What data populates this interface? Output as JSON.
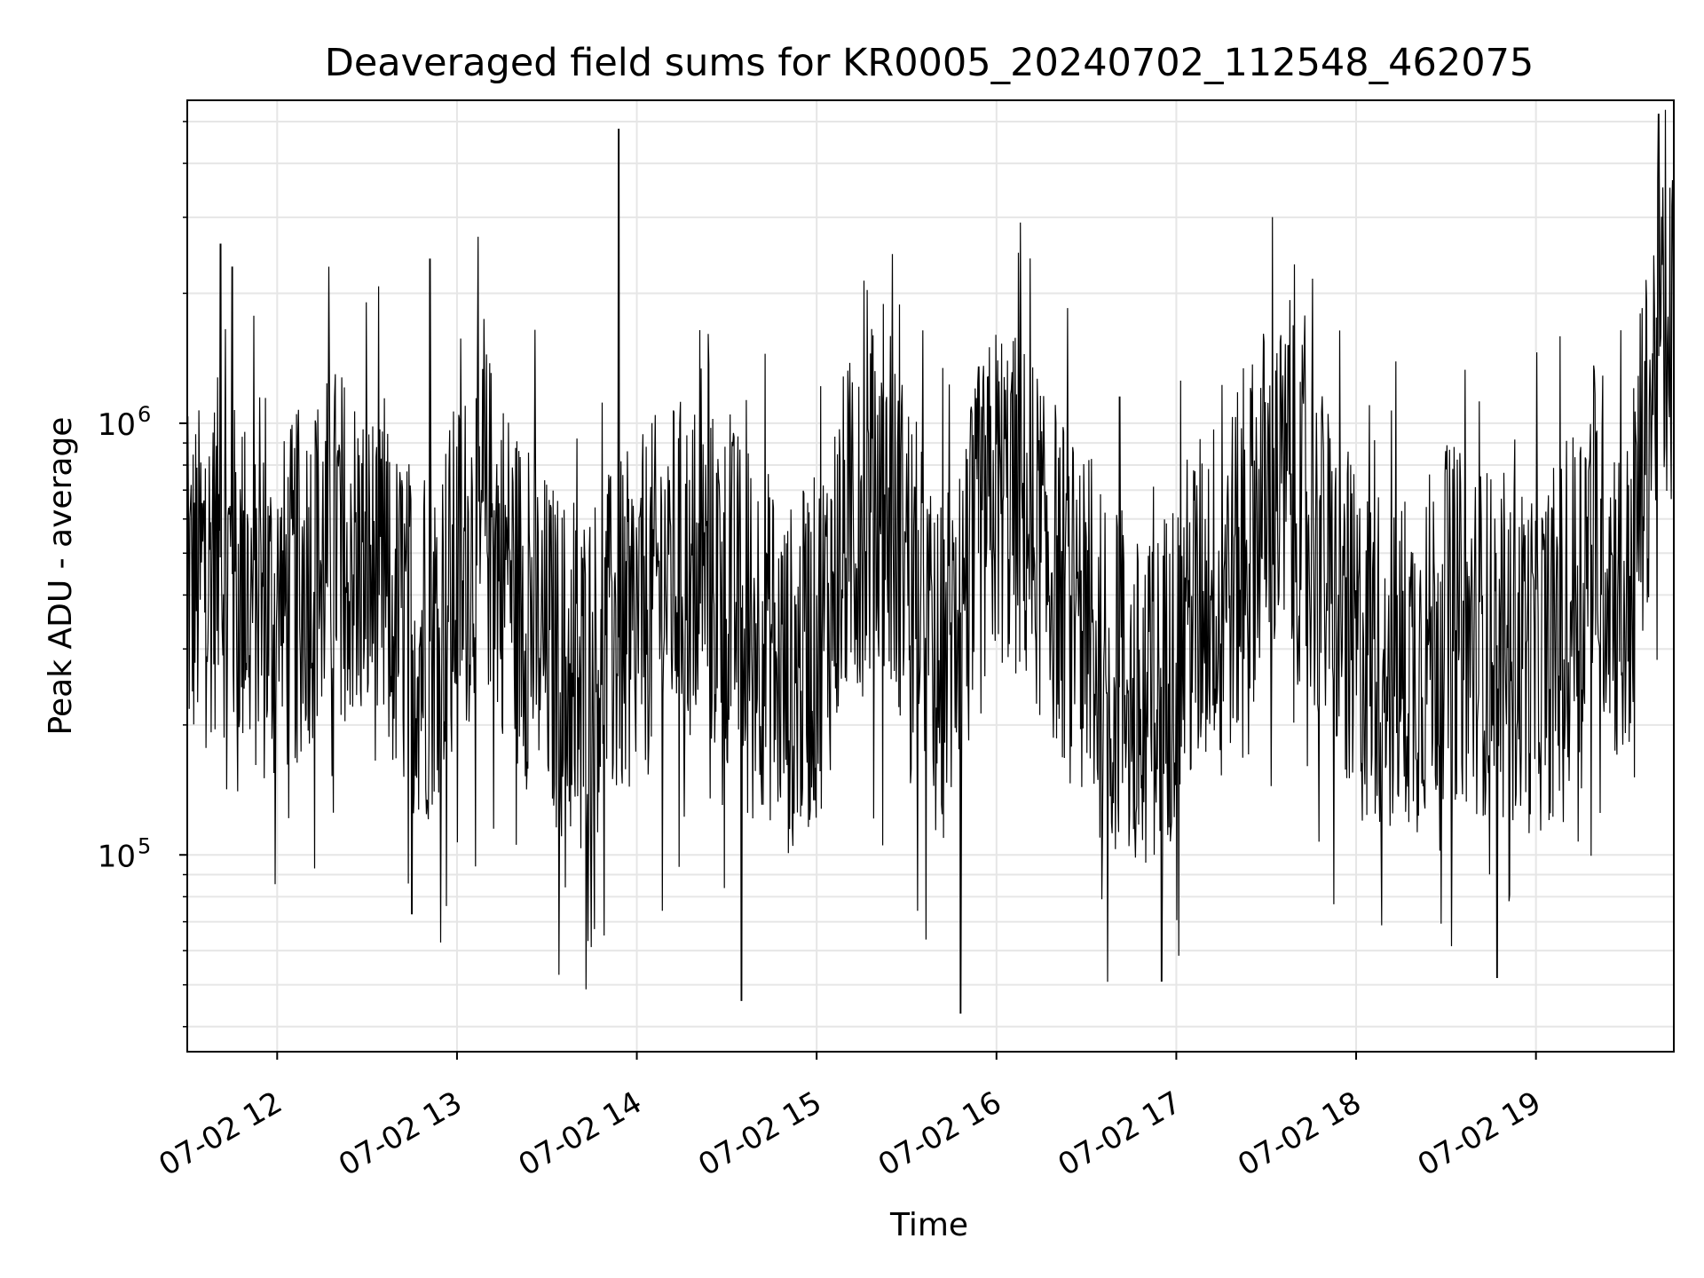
{
  "chart_data": {
    "type": "line",
    "title": "Deaveraged field sums for KR0005_20240702_112548_462075",
    "xlabel": "Time",
    "ylabel": "Peak ADU - average",
    "y_scale": "log",
    "xlim": [
      "07-02 11:30",
      "07-02 19:46"
    ],
    "ylim": [
      35000,
      5600000
    ],
    "x_ticks": [
      "07-02 12",
      "07-02 13",
      "07-02 14",
      "07-02 15",
      "07-02 16",
      "07-02 17",
      "07-02 18",
      "07-02 19"
    ],
    "y_ticks_major": [
      {
        "base": "10",
        "exp": "5",
        "value": 100000
      },
      {
        "base": "10",
        "exp": "6",
        "value": 1000000
      }
    ],
    "grid": true,
    "line_color": "#000000",
    "grid_color": "#e6e6e6",
    "series": [
      {
        "name": "",
        "x": [
          "07-02 11:30",
          "07-02 11:40",
          "07-02 11:50",
          "07-02 12:00",
          "07-02 12:10",
          "07-02 12:20",
          "07-02 12:30",
          "07-02 12:40",
          "07-02 12:50",
          "07-02 13:00",
          "07-02 13:10",
          "07-02 13:20",
          "07-02 13:30",
          "07-02 13:40",
          "07-02 13:50",
          "07-02 14:00",
          "07-02 14:10",
          "07-02 14:20",
          "07-02 14:30",
          "07-02 14:40",
          "07-02 14:50",
          "07-02 15:00",
          "07-02 15:10",
          "07-02 15:20",
          "07-02 15:30",
          "07-02 15:40",
          "07-02 15:50",
          "07-02 16:00",
          "07-02 16:10",
          "07-02 16:20",
          "07-02 16:30",
          "07-02 16:40",
          "07-02 16:50",
          "07-02 17:00",
          "07-02 17:10",
          "07-02 17:20",
          "07-02 17:30",
          "07-02 17:40",
          "07-02 17:50",
          "07-02 18:00",
          "07-02 18:10",
          "07-02 18:20",
          "07-02 18:30",
          "07-02 18:40",
          "07-02 18:50",
          "07-02 19:00",
          "07-02 19:10",
          "07-02 19:20",
          "07-02 19:30",
          "07-02 19:40",
          "07-02 19:46"
        ],
        "y": [
          400000,
          500000,
          400000,
          350000,
          450000,
          550000,
          450000,
          350000,
          300000,
          450000,
          600000,
          400000,
          300000,
          250000,
          300000,
          350000,
          450000,
          450000,
          400000,
          350000,
          250000,
          300000,
          550000,
          650000,
          500000,
          250000,
          400000,
          700000,
          600000,
          450000,
          300000,
          250000,
          200000,
          300000,
          400000,
          450000,
          700000,
          650000,
          450000,
          300000,
          280000,
          280000,
          350000,
          320000,
          300000,
          280000,
          350000,
          600000,
          350000,
          1400000,
          1600000
        ],
        "spikes_high": [
          [
            "07-02 11:41",
            2600000
          ],
          [
            "07-02 11:45",
            2300000
          ],
          [
            "07-02 12:51",
            2400000
          ],
          [
            "07-02 13:54",
            4800000
          ],
          [
            "07-02 15:54",
            1350000
          ],
          [
            "07-02 16:41",
            1150000
          ],
          [
            "07-02 19:41",
            5200000
          ]
        ],
        "spikes_low": [
          [
            "07-02 12:45",
            73000
          ],
          [
            "07-02 14:35",
            46000
          ],
          [
            "07-02 15:48",
            43000
          ],
          [
            "07-02 16:55",
            51000
          ],
          [
            "07-02 18:47",
            52000
          ]
        ]
      }
    ]
  }
}
